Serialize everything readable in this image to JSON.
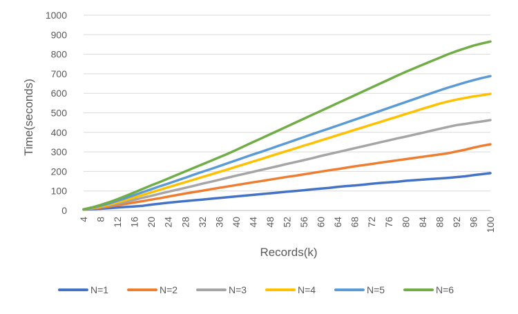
{
  "chart_data": {
    "type": "line",
    "title": "",
    "xlabel": "Records(k)",
    "ylabel": "Time(seconds)",
    "ylim": [
      0,
      1000
    ],
    "yticks": [
      0,
      100,
      200,
      300,
      400,
      500,
      600,
      700,
      800,
      900,
      1000
    ],
    "x": [
      4,
      6,
      8,
      10,
      12,
      14,
      16,
      18,
      20,
      22,
      24,
      26,
      28,
      30,
      32,
      34,
      36,
      38,
      40,
      42,
      44,
      46,
      48,
      50,
      52,
      54,
      56,
      58,
      60,
      62,
      64,
      66,
      68,
      70,
      72,
      74,
      76,
      78,
      80,
      82,
      84,
      86,
      88,
      90,
      92,
      94,
      96,
      98,
      100
    ],
    "xticks": [
      4,
      8,
      12,
      16,
      20,
      24,
      28,
      32,
      36,
      40,
      44,
      48,
      52,
      56,
      60,
      64,
      68,
      72,
      76,
      80,
      84,
      88,
      92,
      96,
      100
    ],
    "grid": true,
    "legend_position": "bottom",
    "series": [
      {
        "name": "N=1",
        "color": "#4472C4",
        "values": [
          5,
          7,
          9,
          12,
          15,
          18,
          21,
          24,
          30,
          35,
          40,
          44,
          48,
          52,
          56,
          60,
          64,
          68,
          72,
          76,
          80,
          84,
          88,
          92,
          96,
          100,
          104,
          108,
          112,
          116,
          121,
          125,
          128,
          132,
          137,
          141,
          144,
          147,
          152,
          155,
          158,
          161,
          164,
          167,
          171,
          175,
          181,
          186,
          191
        ]
      },
      {
        "name": "N=2",
        "color": "#ED7D31",
        "values": [
          6,
          10,
          14,
          20,
          27,
          34,
          41,
          48,
          56,
          63,
          71,
          79,
          87,
          94,
          101,
          109,
          116,
          123,
          130,
          137,
          144,
          151,
          158,
          165,
          172,
          178,
          185,
          192,
          199,
          206,
          212,
          219,
          226,
          232,
          238,
          245,
          251,
          257,
          263,
          269,
          275,
          281,
          287,
          293,
          302,
          311,
          322,
          331,
          339
        ]
      },
      {
        "name": "N=3",
        "color": "#A5A5A5",
        "values": [
          6,
          12,
          18,
          26,
          35,
          45,
          55,
          65,
          75,
          86,
          96,
          106,
          116,
          126,
          137,
          147,
          157,
          168,
          178,
          188,
          198,
          208,
          218,
          228,
          238,
          248,
          258,
          268,
          279,
          289,
          299,
          309,
          319,
          329,
          339,
          349,
          359,
          369,
          378,
          388,
          398,
          408,
          418,
          428,
          437,
          443,
          450,
          456,
          463
        ]
      },
      {
        "name": "N=4",
        "color": "#FFC000",
        "values": [
          6,
          12,
          20,
          30,
          42,
          54,
          67,
          80,
          93,
          106,
          119,
          132,
          145,
          158,
          171,
          184,
          197,
          210,
          224,
          237,
          251,
          264,
          278,
          291,
          305,
          318,
          332,
          345,
          359,
          372,
          386,
          399,
          413,
          426,
          440,
          453,
          467,
          480,
          494,
          507,
          521,
          534,
          547,
          558,
          568,
          576,
          584,
          590,
          597
        ]
      },
      {
        "name": "N=5",
        "color": "#5B9BD5",
        "values": [
          6,
          14,
          24,
          36,
          50,
          64,
          79,
          94,
          109,
          124,
          138,
          153,
          168,
          183,
          198,
          212,
          227,
          242,
          257,
          272,
          287,
          301,
          316,
          331,
          346,
          361,
          376,
          391,
          406,
          420,
          435,
          450,
          465,
          480,
          495,
          510,
          525,
          540,
          555,
          570,
          585,
          600,
          615,
          629,
          642,
          655,
          667,
          678,
          688
        ]
      },
      {
        "name": "N=6",
        "color": "#70AD47",
        "values": [
          6,
          16,
          28,
          42,
          58,
          75,
          93,
          111,
          129,
          146,
          164,
          182,
          200,
          218,
          236,
          254,
          272,
          290,
          310,
          330,
          350,
          370,
          390,
          410,
          430,
          450,
          470,
          490,
          510,
          530,
          550,
          570,
          590,
          610,
          630,
          650,
          670,
          690,
          710,
          728,
          746,
          764,
          782,
          800,
          816,
          830,
          844,
          855,
          865
        ]
      }
    ]
  }
}
